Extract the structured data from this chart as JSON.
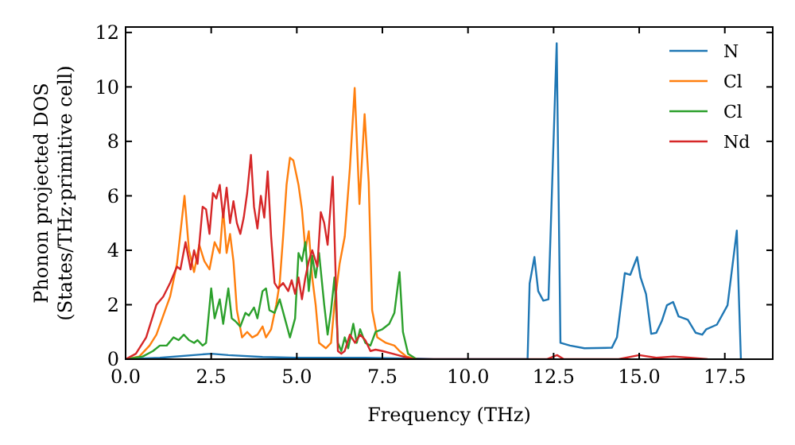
{
  "chart_data": {
    "type": "line",
    "xlabel": "Frequency (THz)",
    "ylabel": "Phonon projected DOS\n(States/THz·primitive cell)",
    "xlim": [
      0,
      18.9
    ],
    "ylim": [
      0,
      12.2
    ],
    "xticks": [
      {
        "value": 0,
        "label": "0.0"
      },
      {
        "value": 2.5,
        "label": "2.5"
      },
      {
        "value": 5,
        "label": "5.0"
      },
      {
        "value": 7.5,
        "label": "7.5"
      },
      {
        "value": 10,
        "label": "10.0"
      },
      {
        "value": 12.5,
        "label": "12.5"
      },
      {
        "value": 15,
        "label": "15.0"
      },
      {
        "value": 17.5,
        "label": "17.5"
      }
    ],
    "yticks": [
      0,
      2,
      4,
      6,
      8,
      10,
      12
    ],
    "grid": false,
    "legend": "top right",
    "marker": "none",
    "line_style": "solid",
    "series": [
      {
        "name": "N",
        "color": "#1f77b4",
        "x": [
          0,
          1,
          2.5,
          3,
          4,
          5,
          7,
          8.5,
          9,
          11.74,
          11.8,
          11.94,
          12.05,
          12.2,
          12.35,
          12.59,
          12.7,
          12.98,
          13.4,
          14.2,
          14.35,
          14.58,
          14.74,
          14.94,
          15.04,
          15.2,
          15.35,
          15.5,
          15.66,
          15.81,
          15.99,
          16.15,
          16.42,
          16.65,
          16.84,
          16.96,
          17.27,
          17.58,
          17.85,
          17.97
        ],
        "values": [
          0,
          0.05,
          0.2,
          0.15,
          0.08,
          0.05,
          0.05,
          0.02,
          0,
          0,
          2.78,
          3.75,
          2.5,
          2.15,
          2.2,
          11.6,
          0.6,
          0.5,
          0.4,
          0.42,
          0.8,
          3.16,
          3.1,
          3.75,
          3.0,
          2.39,
          0.93,
          0.97,
          1.4,
          1.98,
          2.1,
          1.57,
          1.45,
          0.97,
          0.9,
          1.1,
          1.27,
          1.98,
          4.72,
          0
        ]
      },
      {
        "name": "Cl",
        "color": "#ff7f0e",
        "x": [
          0,
          0.4,
          0.7,
          0.9,
          1.1,
          1.3,
          1.5,
          1.72,
          1.85,
          2.0,
          2.15,
          2.3,
          2.45,
          2.6,
          2.75,
          2.85,
          2.95,
          3.05,
          3.15,
          3.25,
          3.4,
          3.55,
          3.7,
          3.85,
          4.0,
          4.1,
          4.25,
          4.4,
          4.5,
          4.6,
          4.7,
          4.8,
          4.9,
          5.05,
          5.15,
          5.25,
          5.35,
          5.45,
          5.55,
          5.65,
          5.85,
          6.0,
          6.1,
          6.25,
          6.4,
          6.55,
          6.69,
          6.83,
          6.98,
          7.1,
          7.2,
          7.35,
          7.6,
          7.85,
          8.0,
          8.2,
          8.5
        ],
        "values": [
          0,
          0.1,
          0.5,
          0.9,
          1.6,
          2.3,
          3.5,
          6.0,
          4.0,
          3.2,
          4.2,
          3.6,
          3.3,
          4.3,
          3.9,
          5.5,
          3.9,
          4.6,
          3.6,
          1.8,
          0.8,
          1.0,
          0.8,
          0.9,
          1.2,
          0.8,
          1.1,
          2.0,
          2.8,
          4.5,
          6.4,
          7.4,
          7.3,
          6.4,
          5.5,
          4.0,
          4.7,
          3.0,
          2.0,
          0.6,
          0.4,
          0.6,
          2.0,
          3.5,
          4.5,
          7.0,
          9.96,
          5.7,
          9.0,
          6.5,
          1.8,
          0.8,
          0.6,
          0.5,
          0.3,
          0.1,
          0
        ]
      },
      {
        "name": "Cl",
        "color": "#2ca02c",
        "x": [
          0,
          0.5,
          0.8,
          1.0,
          1.2,
          1.4,
          1.55,
          1.7,
          1.85,
          2.0,
          2.1,
          2.25,
          2.35,
          2.5,
          2.6,
          2.75,
          2.85,
          3.0,
          3.1,
          3.2,
          3.35,
          3.5,
          3.6,
          3.75,
          3.85,
          4.0,
          4.1,
          4.2,
          4.35,
          4.5,
          4.65,
          4.8,
          4.95,
          5.05,
          5.15,
          5.25,
          5.35,
          5.45,
          5.55,
          5.65,
          5.8,
          5.9,
          6.0,
          6.1,
          6.2,
          6.3,
          6.4,
          6.5,
          6.65,
          6.75,
          6.85,
          7.0,
          7.15,
          7.3,
          7.5,
          7.7,
          7.85,
          8.0,
          8.1,
          8.25,
          8.5
        ],
        "values": [
          0,
          0.1,
          0.3,
          0.5,
          0.5,
          0.8,
          0.7,
          0.9,
          0.7,
          0.6,
          0.7,
          0.5,
          0.6,
          2.6,
          1.5,
          2.2,
          1.3,
          2.6,
          1.5,
          1.4,
          1.2,
          1.7,
          1.6,
          1.9,
          1.5,
          2.5,
          2.6,
          1.8,
          1.7,
          2.2,
          1.5,
          0.8,
          1.5,
          3.9,
          3.6,
          4.3,
          2.5,
          3.8,
          3.0,
          3.9,
          2.0,
          0.9,
          1.8,
          3.0,
          0.6,
          0.3,
          0.8,
          0.4,
          1.3,
          0.6,
          1.1,
          0.6,
          0.5,
          1.0,
          1.1,
          1.3,
          1.7,
          3.2,
          1.0,
          0.2,
          0
        ]
      },
      {
        "name": "Nd",
        "color": "#d62728",
        "x": [
          0,
          0.3,
          0.6,
          0.9,
          1.1,
          1.3,
          1.5,
          1.6,
          1.75,
          1.9,
          2.0,
          2.1,
          2.25,
          2.35,
          2.45,
          2.55,
          2.65,
          2.75,
          2.85,
          2.95,
          3.05,
          3.15,
          3.25,
          3.35,
          3.45,
          3.55,
          3.66,
          3.75,
          3.85,
          3.95,
          4.05,
          4.15,
          4.25,
          4.35,
          4.45,
          4.6,
          4.75,
          4.85,
          4.95,
          5.05,
          5.15,
          5.25,
          5.35,
          5.45,
          5.6,
          5.7,
          5.8,
          5.9,
          6.05,
          6.2,
          6.3,
          6.4,
          6.55,
          6.7,
          6.85,
          7.0,
          7.15,
          7.3,
          7.5,
          7.8,
          8.1,
          8.4,
          12.3,
          12.6,
          12.8,
          14.4,
          15.0,
          15.5,
          16.0,
          16.5,
          17.0
        ],
        "values": [
          0,
          0.2,
          0.8,
          2.0,
          2.3,
          2.8,
          3.4,
          3.3,
          4.3,
          3.3,
          4.0,
          3.5,
          5.6,
          5.5,
          4.6,
          6.1,
          5.9,
          6.4,
          5.2,
          6.3,
          5.0,
          5.8,
          5.0,
          4.6,
          5.2,
          6.1,
          7.5,
          5.6,
          4.8,
          6.0,
          5.2,
          6.9,
          4.5,
          2.8,
          2.6,
          2.8,
          2.5,
          2.9,
          2.4,
          3.0,
          2.2,
          3.0,
          3.6,
          4.0,
          3.4,
          5.4,
          5.0,
          4.2,
          6.7,
          0.3,
          0.2,
          0.3,
          0.9,
          0.6,
          0.9,
          0.7,
          0.3,
          0.35,
          0.3,
          0.2,
          0.1,
          0,
          0,
          0.15,
          0,
          0,
          0.15,
          0.05,
          0.1,
          0.05,
          0
        ]
      }
    ]
  }
}
